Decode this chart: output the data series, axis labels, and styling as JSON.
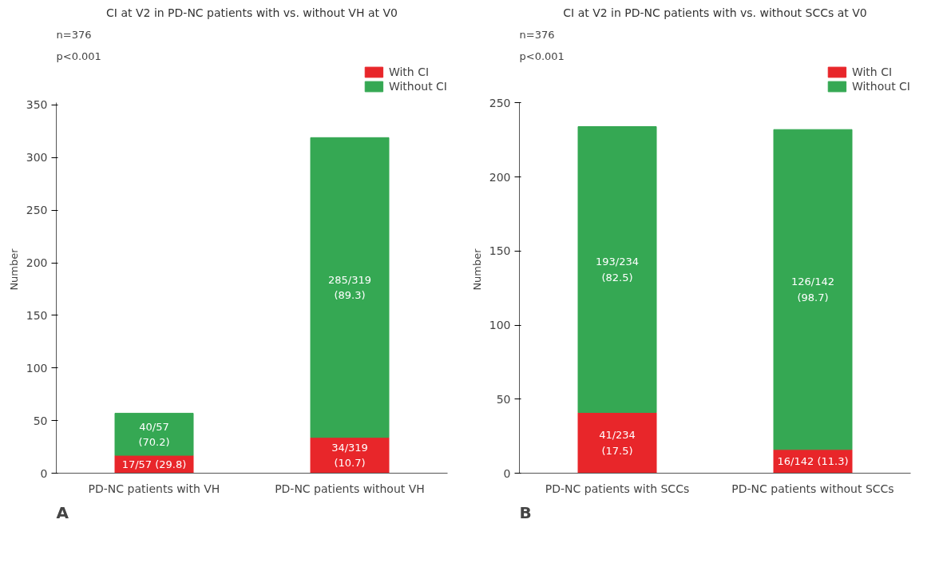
{
  "chart_data": [
    {
      "type": "bar",
      "title": "CI at V2 in PD-NC patients with vs. without VH at V0",
      "ylabel": "Number",
      "categories": [
        "PD-NC patients with VH",
        "PD-NC patients without VH"
      ],
      "stacked": true,
      "ylim": [
        0,
        352
      ],
      "yticks": [
        0,
        50,
        100,
        150,
        200,
        250,
        300,
        350
      ],
      "legend": "top right",
      "grid": false,
      "series": [
        {
          "name": "With CI",
          "color": "#e8262a",
          "values": [
            17,
            34
          ],
          "value_labels": [
            "17/57 (29.8)",
            "34/319\n(10.7)"
          ]
        },
        {
          "name": "Without CI",
          "color": "#35a853",
          "values": [
            40,
            285
          ],
          "value_labels": [
            "40/57\n(70.2)",
            "285/319\n(89.3)"
          ]
        }
      ],
      "annotations": [
        "n=376",
        "p<0.001",
        "A"
      ]
    },
    {
      "type": "bar",
      "title": "CI at V2 in PD-NC patients with vs. without SCCs at V0",
      "ylabel": "Number",
      "categories": [
        "PD-NC patients with SCCs",
        "PD-NC patients without SCCs"
      ],
      "stacked": true,
      "ylim": [
        0,
        250
      ],
      "yticks": [
        0,
        50,
        100,
        150,
        200,
        250
      ],
      "legend": "top right",
      "grid": false,
      "series": [
        {
          "name": "With CI",
          "color": "#e8262a",
          "values": [
            41,
            16
          ],
          "value_labels": [
            "41/234\n(17.5)",
            "16/142 (11.3)"
          ]
        },
        {
          "name": "Without CI",
          "color": "#35a853",
          "values": [
            193,
            216
          ],
          "value_labels": [
            "193/234\n(82.5)",
            "126/142\n(98.7)"
          ]
        }
      ],
      "annotations": [
        "n=376",
        "p<0.001",
        "B"
      ]
    }
  ]
}
